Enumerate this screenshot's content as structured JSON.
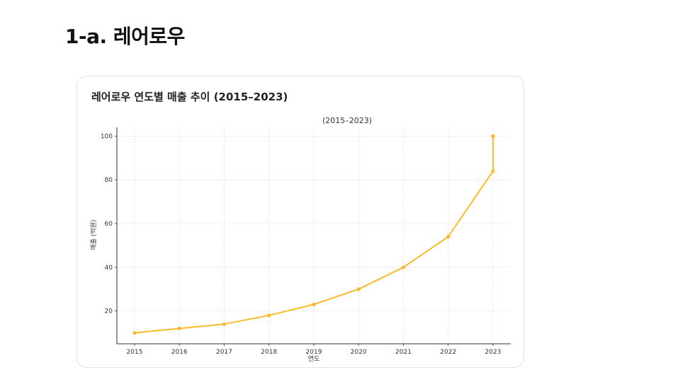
{
  "slide": {
    "title": "1-a. 레어로우"
  },
  "card": {
    "title": "레어로우 연도별 매출 추이 (2015–2023)"
  },
  "chart_data": {
    "type": "line",
    "title": "(2015–2023)",
    "xlabel": "연도",
    "ylabel": "매출 (억원)",
    "x": [
      "2015",
      "2016",
      "2017",
      "2018",
      "2019",
      "2020",
      "2021",
      "2022",
      "2023",
      "2023"
    ],
    "x_categories": [
      "2015",
      "2016",
      "2017",
      "2018",
      "2019",
      "2020",
      "2021",
      "2022",
      "2023"
    ],
    "y": [
      10,
      12,
      14,
      18,
      23,
      30,
      40,
      54,
      84,
      100
    ],
    "y_ticks": [
      20,
      40,
      60,
      80,
      100
    ],
    "ylim": [
      5,
      104
    ],
    "grid": true,
    "line_color": "#FBB92A"
  }
}
